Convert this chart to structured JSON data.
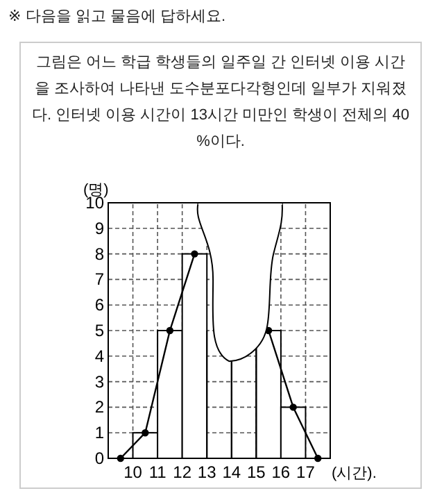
{
  "chart_data": {
    "type": "histogram",
    "title": "※ 다음을 읽고 물음에 답하세요.",
    "annotations": [
      "그림은 어느 학급 학생들의 일주일 간 인터넷 이용 시간을 조사하여 나타낸 도수분포다각형인데 일부가 지워졌다. 인터넷 이용 시간이 13시간 미만인 학생이 전체의 40 %이다."
    ],
    "xlabel": "(시간).",
    "ylabel": "(명)",
    "bins": [
      10,
      11,
      12,
      13,
      14,
      15,
      16,
      17
    ],
    "values": [
      1,
      5,
      8,
      null,
      null,
      5,
      2
    ],
    "color": "#ffffff",
    "series": [
      {
        "type": "line",
        "color": "#000000",
        "x": [
          9.5,
          10.5,
          11.5,
          12.5,
          13.5,
          14.5,
          15.5,
          16.5,
          17.5
        ],
        "values": [
          0,
          1,
          5,
          8,
          null,
          null,
          5,
          2,
          0
        ]
      }
    ],
    "xlim": [
      9,
      18
    ],
    "xticks": [
      10,
      11,
      12,
      13,
      14,
      15,
      16,
      17
    ],
    "ylim": [
      0,
      10
    ],
    "yticks": [
      0,
      1,
      2,
      3,
      4,
      5,
      6,
      7,
      8,
      9,
      10
    ],
    "grid": true,
    "marker": "circle",
    "line_style": "solid"
  }
}
